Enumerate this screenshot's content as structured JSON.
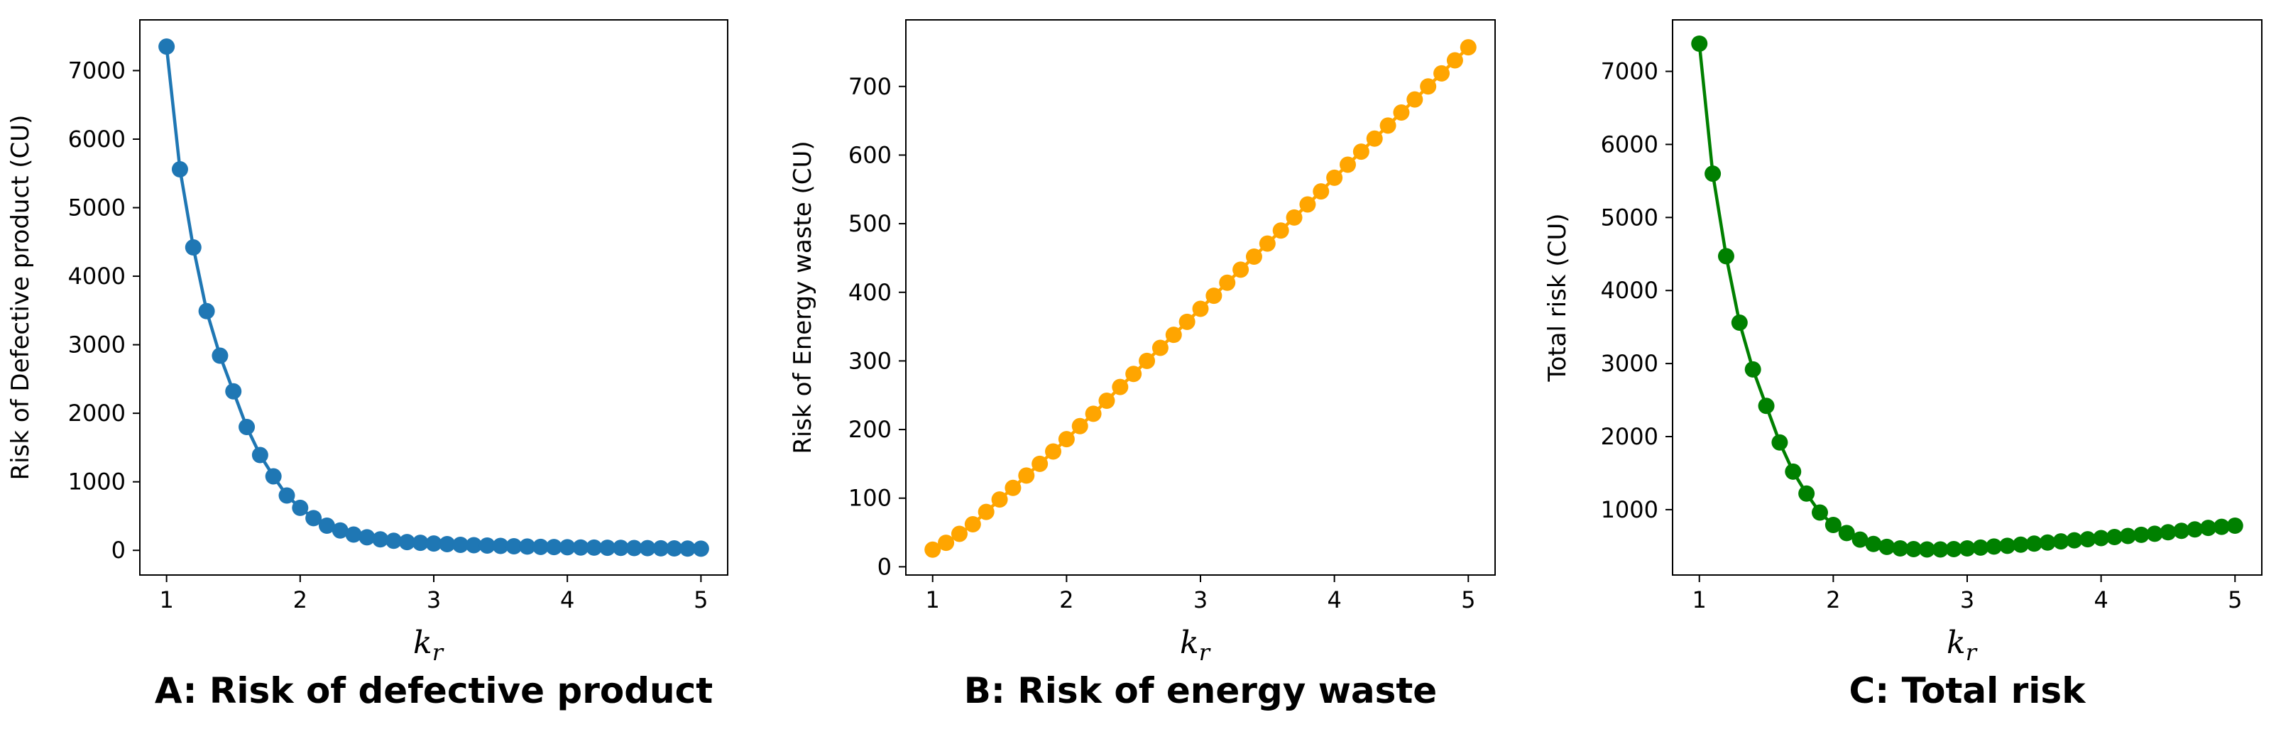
{
  "chart_data": [
    {
      "type": "line",
      "title": "A: Risk of defective product",
      "xlabel_main": "k",
      "xlabel_sub": "r",
      "ylabel": "Risk of Defective product (CU)",
      "color": "#1f77b4",
      "xlim": [
        0.8,
        5.2
      ],
      "ylim": [
        -360,
        7740
      ],
      "xticks": [
        1,
        2,
        3,
        4,
        5
      ],
      "yticks": [
        0,
        1000,
        2000,
        3000,
        4000,
        5000,
        6000,
        7000
      ],
      "series": [
        {
          "x": [
            1.0,
            1.1,
            1.2,
            1.3,
            1.4,
            1.5,
            1.6,
            1.7,
            1.8,
            1.9,
            2.0,
            2.1,
            2.2,
            2.3,
            2.4,
            2.5,
            2.6,
            2.7,
            2.8,
            2.9,
            3.0,
            3.1,
            3.2,
            3.3,
            3.4,
            3.5,
            3.6,
            3.7,
            3.8,
            3.9,
            4.0,
            4.1,
            4.2,
            4.3,
            4.4,
            4.5,
            4.6,
            4.7,
            4.8,
            4.9,
            5.0
          ],
          "y": [
            7350,
            5560,
            4420,
            3490,
            2840,
            2320,
            1800,
            1390,
            1080,
            800,
            620,
            470,
            360,
            290,
            230,
            190,
            160,
            140,
            120,
            110,
            100,
            90,
            80,
            75,
            70,
            65,
            60,
            55,
            50,
            48,
            45,
            42,
            40,
            38,
            36,
            34,
            32,
            30,
            28,
            26,
            25
          ]
        }
      ]
    },
    {
      "type": "line",
      "title": "B: Risk of energy waste",
      "xlabel_main": "k",
      "xlabel_sub": "r",
      "ylabel": "Risk of Energy waste (CU)",
      "color": "#ffa500",
      "xlim": [
        0.8,
        5.2
      ],
      "ylim": [
        -12,
        797
      ],
      "xticks": [
        1,
        2,
        3,
        4,
        5
      ],
      "yticks": [
        0,
        100,
        200,
        300,
        400,
        500,
        600,
        700
      ],
      "series": [
        {
          "x": [
            1.0,
            1.1,
            1.2,
            1.3,
            1.4,
            1.5,
            1.6,
            1.7,
            1.8,
            1.9,
            2.0,
            2.1,
            2.2,
            2.3,
            2.4,
            2.5,
            2.6,
            2.7,
            2.8,
            2.9,
            3.0,
            3.1,
            3.2,
            3.3,
            3.4,
            3.5,
            3.6,
            3.7,
            3.8,
            3.9,
            4.0,
            4.1,
            4.2,
            4.3,
            4.4,
            4.5,
            4.6,
            4.7,
            4.8,
            4.9,
            5.0
          ],
          "y": [
            25,
            35,
            48,
            62,
            80,
            98,
            115,
            133,
            150,
            168,
            186,
            205,
            223,
            242,
            262,
            281,
            300,
            319,
            338,
            357,
            376,
            395,
            414,
            433,
            452,
            471,
            490,
            509,
            528,
            547,
            567,
            586,
            605,
            624,
            643,
            662,
            681,
            700,
            719,
            738,
            757
          ]
        }
      ]
    },
    {
      "type": "line",
      "title": "C: Total risk",
      "xlabel_main": "k",
      "xlabel_sub": "r",
      "ylabel": "Total risk (CU)",
      "color": "#008000",
      "xlim": [
        0.8,
        5.2
      ],
      "ylim": [
        105,
        7705
      ],
      "xticks": [
        1,
        2,
        3,
        4,
        5
      ],
      "yticks": [
        1000,
        2000,
        3000,
        4000,
        5000,
        6000,
        7000
      ],
      "series": [
        {
          "x": [
            1.0,
            1.1,
            1.2,
            1.3,
            1.4,
            1.5,
            1.6,
            1.7,
            1.8,
            1.9,
            2.0,
            2.1,
            2.2,
            2.3,
            2.4,
            2.5,
            2.6,
            2.7,
            2.8,
            2.9,
            3.0,
            3.1,
            3.2,
            3.3,
            3.4,
            3.5,
            3.6,
            3.7,
            3.8,
            3.9,
            4.0,
            4.1,
            4.2,
            4.3,
            4.4,
            4.5,
            4.6,
            4.7,
            4.8,
            4.9,
            5.0
          ],
          "y": [
            7380,
            5600,
            4470,
            3560,
            2920,
            2420,
            1920,
            1520,
            1220,
            960,
            790,
            680,
            590,
            530,
            490,
            470,
            460,
            455,
            455,
            460,
            470,
            480,
            495,
            505,
            520,
            535,
            550,
            565,
            580,
            595,
            610,
            625,
            640,
            655,
            670,
            690,
            710,
            730,
            750,
            765,
            780
          ]
        }
      ]
    }
  ]
}
